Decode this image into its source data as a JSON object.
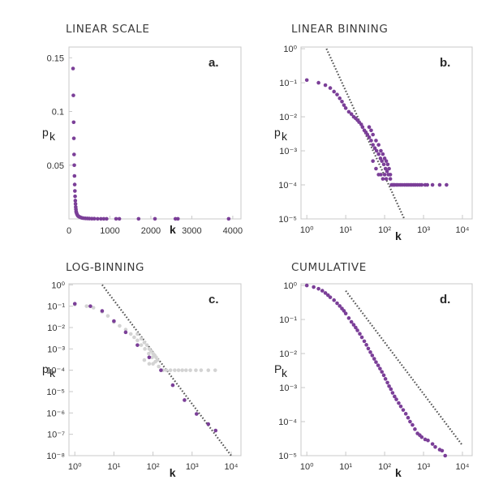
{
  "colors": {
    "points": "#7b3f98",
    "background_points": "#d3d3d3",
    "fit_line": "#555555",
    "frame": "#c8c8c8"
  },
  "chart_data": [
    {
      "id": "a",
      "type": "scatter",
      "title": "LINEAR SCALE",
      "panel_label": "a.",
      "xlabel": "k",
      "ylabel": "p",
      "ylabel_sub": "k",
      "xscale": "linear",
      "yscale": "linear",
      "xlim": [
        0,
        4200
      ],
      "ylim": [
        0,
        0.16
      ],
      "xticks": [
        {
          "v": 0,
          "label": "0"
        },
        {
          "v": 1000,
          "label": "1000"
        },
        {
          "v": 2000,
          "label": "2000"
        },
        {
          "v": 3000,
          "label": "3000"
        },
        {
          "v": 4000,
          "label": "4000"
        }
      ],
      "yticks": [
        {
          "v": 0.05,
          "label": "0.05"
        },
        {
          "v": 0.1,
          "label": "0.1"
        },
        {
          "v": 0.15,
          "label": "0.15"
        }
      ],
      "x_label_tick_position": 2000,
      "series": [
        {
          "style": "points",
          "points": [
            [
              100,
              0.14
            ],
            [
              108,
              0.115
            ],
            [
              115,
              0.09
            ],
            [
              120,
              0.075
            ],
            [
              125,
              0.06
            ],
            [
              130,
              0.05
            ],
            [
              135,
              0.04
            ],
            [
              140,
              0.032
            ],
            [
              145,
              0.026
            ],
            [
              150,
              0.021
            ],
            [
              155,
              0.017
            ],
            [
              160,
              0.014
            ],
            [
              165,
              0.011
            ],
            [
              170,
              0.009
            ],
            [
              175,
              0.007
            ],
            [
              180,
              0.006
            ],
            [
              190,
              0.005
            ],
            [
              200,
              0.004
            ],
            [
              215,
              0.003
            ],
            [
              230,
              0.0025
            ],
            [
              250,
              0.002
            ],
            [
              280,
              0.0015
            ],
            [
              310,
              0.001
            ],
            [
              350,
              0.0007
            ],
            [
              400,
              0.0005
            ],
            [
              450,
              0.0004
            ],
            [
              500,
              0.0003
            ],
            [
              560,
              0.0002
            ],
            [
              620,
              0.0002
            ],
            [
              700,
              0.0001
            ],
            [
              780,
              0.0001
            ],
            [
              850,
              0.0001
            ],
            [
              920,
              0.0001
            ],
            [
              1150,
              0.0001
            ],
            [
              1230,
              0.0001
            ],
            [
              1700,
              0.0001
            ],
            [
              2100,
              0.0001
            ],
            [
              2600,
              0.0001
            ],
            [
              2660,
              0.0001
            ],
            [
              3900,
              0.0001
            ]
          ]
        }
      ]
    },
    {
      "id": "b",
      "type": "scatter",
      "title": "LINEAR BINNING",
      "panel_label": "b.",
      "xlabel": "k",
      "ylabel": "p",
      "ylabel_sub": "k",
      "xscale": "log",
      "yscale": "log",
      "xlim_exp": [
        -0.15,
        4.25
      ],
      "ylim_exp": [
        -5,
        0.05
      ],
      "xtick_exps": [
        0,
        1,
        2,
        3,
        4
      ],
      "ytick_exps": [
        0,
        -1,
        -2,
        -3,
        -4,
        -5
      ],
      "x_label_tick_position": 2.35,
      "fit_line": {
        "x": [
          3.2,
          320
        ],
        "y": [
          1.0,
          1e-05
        ]
      },
      "series": [
        {
          "style": "points",
          "points": [
            [
              1,
              0.12
            ],
            [
              2,
              0.1
            ],
            [
              3,
              0.085
            ],
            [
              4,
              0.07
            ],
            [
              5,
              0.055
            ],
            [
              6,
              0.045
            ],
            [
              7,
              0.035
            ],
            [
              8,
              0.028
            ],
            [
              9,
              0.022
            ],
            [
              10,
              0.018
            ],
            [
              12,
              0.014
            ],
            [
              14,
              0.012
            ],
            [
              16,
              0.01
            ],
            [
              18,
              0.009
            ],
            [
              20,
              0.008
            ],
            [
              22,
              0.007
            ],
            [
              25,
              0.006
            ],
            [
              27,
              0.005
            ],
            [
              30,
              0.004
            ],
            [
              33,
              0.0035
            ],
            [
              36,
              0.003
            ],
            [
              40,
              0.0025
            ],
            [
              45,
              0.002
            ],
            [
              50,
              0.0015
            ],
            [
              56,
              0.0012
            ],
            [
              62,
              0.001
            ],
            [
              70,
              0.0008
            ],
            [
              78,
              0.0006
            ],
            [
              85,
              0.0005
            ],
            [
              95,
              0.0004
            ],
            [
              105,
              0.0003
            ],
            [
              115,
              0.00025
            ],
            [
              125,
              0.0002
            ],
            [
              140,
              0.00015
            ],
            [
              150,
              0.0001
            ],
            [
              160,
              0.0001
            ],
            [
              170,
              0.0001
            ],
            [
              180,
              0.0001
            ],
            [
              200,
              0.0001
            ],
            [
              220,
              0.0001
            ],
            [
              250,
              0.0001
            ],
            [
              280,
              0.0001
            ],
            [
              320,
              0.0001
            ],
            [
              360,
              0.0001
            ],
            [
              400,
              0.0001
            ],
            [
              450,
              0.0001
            ],
            [
              500,
              0.0001
            ],
            [
              560,
              0.0001
            ],
            [
              620,
              0.0001
            ],
            [
              700,
              0.0001
            ],
            [
              800,
              0.0001
            ],
            [
              900,
              0.0001
            ],
            [
              1100,
              0.0001
            ],
            [
              1250,
              0.0001
            ],
            [
              1700,
              0.0001
            ],
            [
              2600,
              0.0001
            ],
            [
              3900,
              0.0001
            ],
            [
              40,
              0.005
            ],
            [
              45,
              0.004
            ],
            [
              50,
              0.003
            ],
            [
              60,
              0.002
            ],
            [
              70,
              0.0015
            ],
            [
              80,
              0.001
            ],
            [
              90,
              0.0008
            ],
            [
              100,
              0.0006
            ],
            [
              110,
              0.0005
            ],
            [
              120,
              0.0004
            ],
            [
              130,
              0.0003
            ],
            [
              140,
              0.0002
            ],
            [
              50,
              0.0005
            ],
            [
              60,
              0.0003
            ],
            [
              70,
              0.0002
            ],
            [
              80,
              0.0002
            ],
            [
              90,
              0.00015
            ],
            [
              100,
              0.0002
            ],
            [
              110,
              0.00015
            ]
          ]
        }
      ]
    },
    {
      "id": "c",
      "type": "scatter",
      "title": "LOG-BINNING",
      "panel_label": "c.",
      "xlabel": "k",
      "ylabel": "p",
      "ylabel_sub": "k",
      "xscale": "log",
      "yscale": "log",
      "xlim_exp": [
        -0.15,
        4.25
      ],
      "ylim_exp": [
        -8,
        0.05
      ],
      "xtick_exps": [
        0,
        1,
        2,
        3,
        4
      ],
      "ytick_exps": [
        0,
        -1,
        -2,
        -3,
        -4,
        -5,
        -6,
        -7,
        -8
      ],
      "x_label_tick_position": 2.5,
      "fit_line": {
        "x": [
          5,
          10000
        ],
        "y": [
          1.0,
          1e-08
        ]
      },
      "series": [
        {
          "style": "background",
          "points": [
            [
              1,
              0.12
            ],
            [
              2,
              0.1
            ],
            [
              3,
              0.085
            ],
            [
              5,
              0.055
            ],
            [
              7,
              0.035
            ],
            [
              10,
              0.018
            ],
            [
              14,
              0.012
            ],
            [
              20,
              0.008
            ],
            [
              27,
              0.005
            ],
            [
              33,
              0.0035
            ],
            [
              40,
              0.0025
            ],
            [
              50,
              0.0015
            ],
            [
              62,
              0.001
            ],
            [
              78,
              0.0006
            ],
            [
              95,
              0.0004
            ],
            [
              115,
              0.00025
            ],
            [
              140,
              0.00015
            ],
            [
              160,
              0.0001
            ],
            [
              180,
              0.0001
            ],
            [
              220,
              0.0001
            ],
            [
              280,
              0.0001
            ],
            [
              360,
              0.0001
            ],
            [
              450,
              0.0001
            ],
            [
              560,
              0.0001
            ],
            [
              700,
              0.0001
            ],
            [
              900,
              0.0001
            ],
            [
              1250,
              0.0001
            ],
            [
              1700,
              0.0001
            ],
            [
              2600,
              0.0001
            ],
            [
              3900,
              0.0001
            ],
            [
              40,
              0.005
            ],
            [
              50,
              0.003
            ],
            [
              60,
              0.002
            ],
            [
              70,
              0.0015
            ],
            [
              80,
              0.001
            ],
            [
              90,
              0.0008
            ],
            [
              100,
              0.0006
            ],
            [
              110,
              0.0005
            ],
            [
              120,
              0.0004
            ],
            [
              130,
              0.0003
            ],
            [
              60,
              0.0003
            ],
            [
              80,
              0.0002
            ],
            [
              100,
              0.0002
            ]
          ]
        },
        {
          "style": "points",
          "points": [
            [
              1,
              0.13
            ],
            [
              2.5,
              0.1
            ],
            [
              5,
              0.06
            ],
            [
              10,
              0.02
            ],
            [
              20,
              0.006
            ],
            [
              40,
              0.0015
            ],
            [
              80,
              0.0004
            ],
            [
              160,
              0.0001
            ],
            [
              320,
              2e-05
            ],
            [
              640,
              4e-06
            ],
            [
              1300,
              9e-07
            ],
            [
              2600,
              3e-07
            ],
            [
              4000,
              1.5e-07
            ]
          ]
        }
      ]
    },
    {
      "id": "d",
      "type": "scatter",
      "title": "CUMULATIVE",
      "panel_label": "d.",
      "xlabel": "k",
      "ylabel": "P",
      "ylabel_sub": "k",
      "xscale": "log",
      "yscale": "log",
      "xlim_exp": [
        -0.15,
        4.25
      ],
      "ylim_exp": [
        -5,
        0.05
      ],
      "xtick_exps": [
        0,
        1,
        2,
        3,
        4
      ],
      "ytick_exps": [
        0,
        -1,
        -2,
        -3,
        -4,
        -5
      ],
      "x_label_tick_position": 2.35,
      "fit_line": {
        "x": [
          10,
          10000
        ],
        "y": [
          0.7,
          2e-05
        ]
      },
      "series": [
        {
          "style": "points",
          "points": [
            [
              1,
              1.0
            ],
            [
              1.5,
              0.9
            ],
            [
              2,
              0.8
            ],
            [
              2.5,
              0.7
            ],
            [
              3,
              0.6
            ],
            [
              3.5,
              0.52
            ],
            [
              4,
              0.45
            ],
            [
              5,
              0.37
            ],
            [
              6,
              0.3
            ],
            [
              7,
              0.25
            ],
            [
              8,
              0.21
            ],
            [
              9,
              0.18
            ],
            [
              10,
              0.15
            ],
            [
              12,
              0.11
            ],
            [
              14,
              0.085
            ],
            [
              16,
              0.07
            ],
            [
              18,
              0.058
            ],
            [
              20,
              0.048
            ],
            [
              23,
              0.038
            ],
            [
              26,
              0.03
            ],
            [
              30,
              0.023
            ],
            [
              34,
              0.018
            ],
            [
              38,
              0.014
            ],
            [
              43,
              0.011
            ],
            [
              48,
              0.0088
            ],
            [
              54,
              0.007
            ],
            [
              60,
              0.0056
            ],
            [
              68,
              0.0045
            ],
            [
              76,
              0.0036
            ],
            [
              85,
              0.0029
            ],
            [
              95,
              0.0023
            ],
            [
              105,
              0.0018
            ],
            [
              118,
              0.0014
            ],
            [
              130,
              0.0011
            ],
            [
              145,
              0.0009
            ],
            [
              160,
              0.0007
            ],
            [
              180,
              0.00055
            ],
            [
              200,
              0.00045
            ],
            [
              230,
              0.00035
            ],
            [
              260,
              0.00028
            ],
            [
              300,
              0.00022
            ],
            [
              350,
              0.00017
            ],
            [
              400,
              0.00013
            ],
            [
              450,
              0.0001
            ],
            [
              520,
              8e-05
            ],
            [
              600,
              6e-05
            ],
            [
              700,
              4.5e-05
            ],
            [
              800,
              4e-05
            ],
            [
              900,
              3.5e-05
            ],
            [
              1100,
              3e-05
            ],
            [
              1300,
              2.8e-05
            ],
            [
              1700,
              2.2e-05
            ],
            [
              2000,
              1.8e-05
            ],
            [
              2600,
              1.5e-05
            ],
            [
              3000,
              1.4e-05
            ],
            [
              3600,
              1e-05
            ]
          ]
        }
      ]
    }
  ]
}
